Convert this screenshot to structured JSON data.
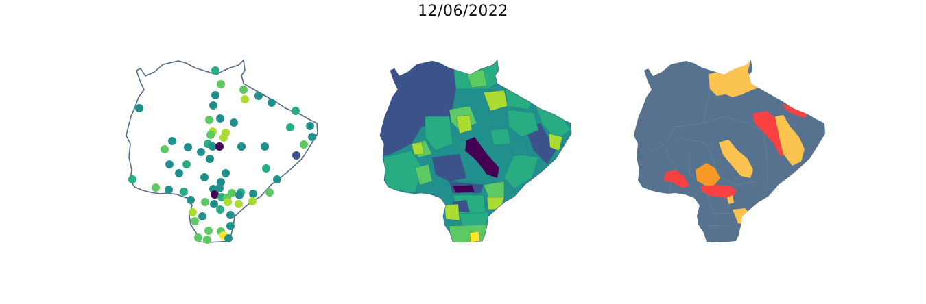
{
  "title": "12/06/2022",
  "colors": {
    "outline": "#4f6b8a",
    "alert_base": "#56728f",
    "alert_yellow": "#fbc350",
    "alert_orange": "#f79a25",
    "alert_red": "#f94141",
    "viridis": [
      "#440154",
      "#3b528b",
      "#21908d",
      "#27ad81",
      "#5dc963",
      "#aadc32",
      "#fde725"
    ]
  },
  "panels": [
    {
      "name": "station-points",
      "icon": "scatter-map"
    },
    {
      "name": "municipality-choropleth",
      "icon": "choropleth-map"
    },
    {
      "name": "alert-levels",
      "icon": "alert-map"
    }
  ]
}
